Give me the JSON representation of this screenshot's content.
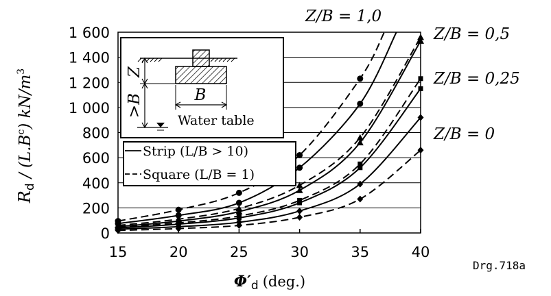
{
  "chart_data": {
    "type": "line",
    "xlabel_symbol": "Φ′",
    "xlabel_sub": "d",
    "xlabel_unit": "(deg.)",
    "ylabel_symbol": "R",
    "ylabel_sub": "d",
    "ylabel_rest": " / (L.B",
    "ylabel_sup": "c",
    "ylabel_units": ") kN/m",
    "ylabel_units_sup": "3",
    "xlim": [
      15,
      40
    ],
    "ylim": [
      0,
      1600
    ],
    "x_ticks": [
      "15",
      "20",
      "25",
      "30",
      "35",
      "40"
    ],
    "y_ticks": [
      "0",
      "200",
      "400",
      "600",
      "800",
      "1 000",
      "1 200",
      "1 400",
      "1 600"
    ],
    "grid": "horizontal",
    "drawing_id": "Drg.718a",
    "legend": {
      "strip": "Strip (L/B > 10)",
      "square": "Square (L/B = 1)"
    },
    "inset": {
      "z_label": "Z",
      "b_dim_label": "B",
      "depth_label": ">B",
      "water_table_label": "Water table"
    },
    "group_labels": {
      "z10": "Z/B = 1,0",
      "z05": "Z/B = 0,5",
      "z025": "Z/B = 0,25",
      "z0": "Z/B = 0"
    },
    "series": [
      {
        "group": "z10",
        "shape": "square",
        "marker": "circle",
        "x": [
          15,
          20,
          25,
          30,
          35,
          37
        ],
        "y": [
          95,
          185,
          320,
          620,
          1230,
          1600
        ]
      },
      {
        "group": "z10",
        "shape": "strip",
        "marker": "circle",
        "x": [
          15,
          20,
          25,
          30,
          35,
          38
        ],
        "y": [
          75,
          140,
          240,
          520,
          1030,
          1600
        ]
      },
      {
        "group": "z05",
        "shape": "square",
        "marker": "triangle",
        "x": [
          15,
          20,
          25,
          30,
          35,
          40
        ],
        "y": [
          60,
          110,
          195,
          380,
          760,
          1560
        ]
      },
      {
        "group": "z05",
        "shape": "strip",
        "marker": "triangle",
        "x": [
          15,
          20,
          25,
          30,
          35,
          40
        ],
        "y": [
          50,
          95,
          170,
          340,
          720,
          1530
        ]
      },
      {
        "group": "z025",
        "shape": "square",
        "marker": "square",
        "x": [
          15,
          20,
          25,
          30,
          35,
          40
        ],
        "y": [
          45,
          80,
          135,
          260,
          550,
          1230
        ]
      },
      {
        "group": "z025",
        "shape": "strip",
        "marker": "square",
        "x": [
          15,
          20,
          25,
          30,
          35,
          40
        ],
        "y": [
          40,
          70,
          120,
          240,
          520,
          1150
        ]
      },
      {
        "group": "z0",
        "shape": "strip",
        "marker": "diamond",
        "x": [
          15,
          20,
          25,
          30,
          35,
          40
        ],
        "y": [
          30,
          50,
          85,
          175,
          390,
          920
        ]
      },
      {
        "group": "z0",
        "shape": "square",
        "marker": "diamond",
        "x": [
          15,
          20,
          25,
          30,
          35,
          40
        ],
        "y": [
          20,
          35,
          60,
          125,
          270,
          660
        ]
      }
    ]
  }
}
